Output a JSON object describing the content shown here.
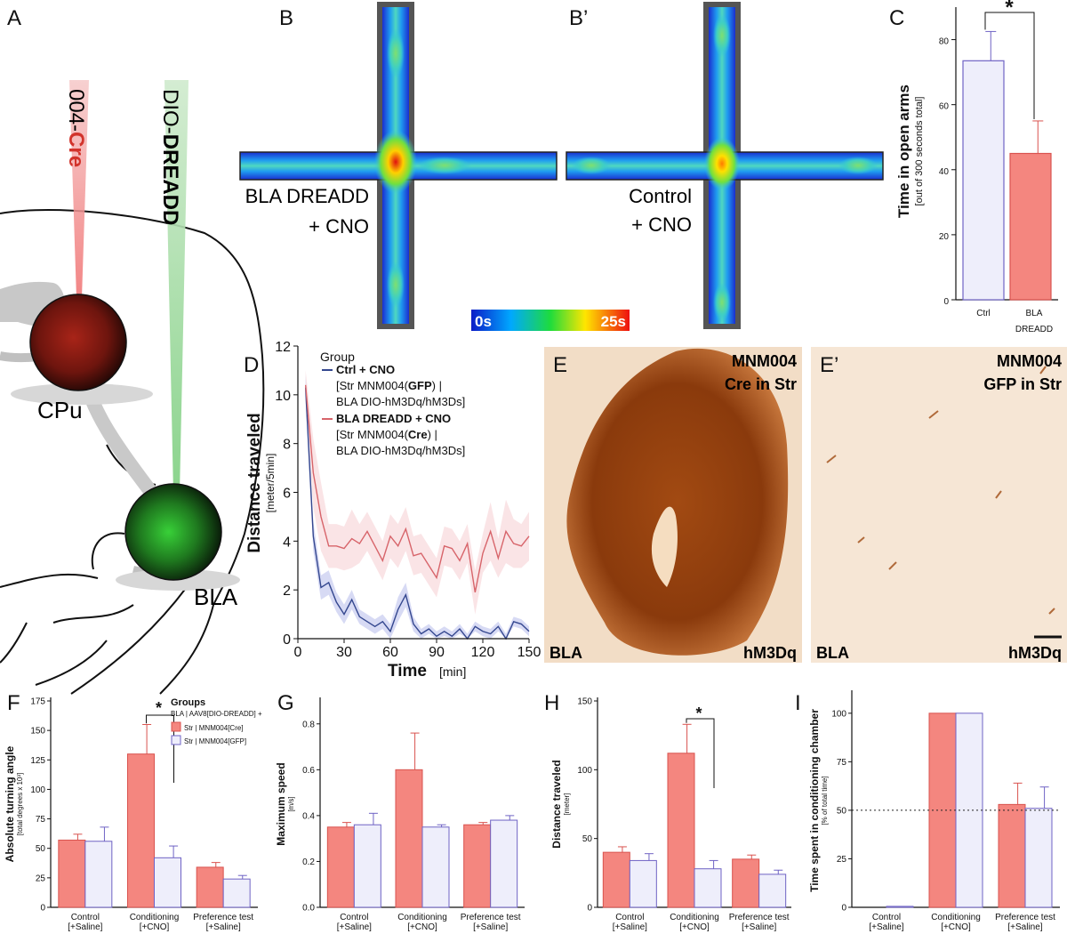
{
  "colors": {
    "cre_bar": "#f4867f",
    "gfp_bar": "#eeeefb",
    "cre_border": "#d9534f",
    "gfp_border": "#6f63c4",
    "ctrl_line": "#34478f",
    "bla_line": "#d7646a",
    "ctrl_band": "#c9cef0",
    "bla_band": "#f8dbdd",
    "stain_dark": "#8a3a0c",
    "stain_bg": "#f6e9dc"
  },
  "panelA": {
    "letter": "A",
    "injection1_prefix": "004-",
    "injection1_bold": "Cre",
    "injection2_prefix": "DIO-",
    "injection2_bold": "DREADD",
    "label_cpu": "CPu",
    "label_bla": "BLA"
  },
  "panelB": {
    "letter": "B",
    "caption_line1": "BLA DREADD",
    "caption_line2": "+ CNO"
  },
  "panelB2": {
    "letter": "B’",
    "caption_line1": "Control",
    "caption_line2": "+ CNO"
  },
  "colorbar": {
    "min_label": "0s",
    "max_label": "25s"
  },
  "panelE": {
    "letter": "E",
    "title_line1": "MNM004",
    "title_line2": "Cre in Str",
    "region": "BLA",
    "marker": "hM3Dq"
  },
  "panelE2": {
    "letter": "E’",
    "title_line1": "MNM004",
    "title_line2": "GFP in Str",
    "region": "BLA",
    "marker": "hM3Dq"
  },
  "chart_data": [
    {
      "panel": "C",
      "type": "bar",
      "ylabel": "Time in open arms",
      "ysublabel": "[out of 300 seconds total]",
      "ylim": [
        0,
        90
      ],
      "yticks": [
        0,
        20,
        40,
        60,
        80
      ],
      "categories": [
        "Ctrl",
        "BLA\nDREADD"
      ],
      "values": [
        73.5,
        45
      ],
      "errors": [
        9,
        10
      ],
      "significance": "*"
    },
    {
      "panel": "D",
      "type": "line",
      "ylabel": "Distance traveled",
      "ysublabel": "[meter/5min]",
      "xlabel": "Time",
      "xunit": "[min]",
      "xlim": [
        0,
        150
      ],
      "ylim": [
        0,
        12
      ],
      "xticks": [
        0,
        30,
        60,
        90,
        120,
        150
      ],
      "yticks": [
        0,
        2,
        4,
        6,
        8,
        10,
        12
      ],
      "legend_title": "Group",
      "x": [
        5,
        10,
        15,
        20,
        25,
        30,
        35,
        40,
        45,
        50,
        55,
        60,
        65,
        70,
        75,
        80,
        85,
        90,
        95,
        100,
        105,
        110,
        115,
        120,
        125,
        130,
        135,
        140,
        145,
        150
      ],
      "series": [
        {
          "name": "Ctrl + CNO",
          "sub1": "[Str MNM004(",
          "sub1b": "GFP",
          "sub1c": ")  |",
          "sub2": "BLA DIO-hM3Dq/hM3Ds]",
          "values": [
            10.3,
            4.2,
            2.1,
            2.3,
            1.5,
            1.0,
            1.6,
            0.9,
            0.7,
            0.5,
            0.7,
            0.3,
            1.2,
            1.8,
            0.6,
            0.2,
            0.4,
            0.1,
            0.3,
            0.1,
            0.4,
            0.0,
            0.5,
            0.3,
            0.2,
            0.5,
            0.0,
            0.7,
            0.6,
            0.3
          ],
          "band": [
            0.5,
            0.6,
            0.5,
            0.5,
            0.4,
            0.4,
            0.4,
            0.3,
            0.3,
            0.3,
            0.3,
            0.3,
            0.5,
            0.5,
            0.3,
            0.2,
            0.2,
            0.2,
            0.2,
            0.2,
            0.2,
            0.2,
            0.2,
            0.2,
            0.2,
            0.2,
            0.2,
            0.2,
            0.2,
            0.2
          ]
        },
        {
          "name": "BLA DREADD + CNO",
          "sub1": "[Str MNM004(",
          "sub1b": "Cre",
          "sub1c": ")  |",
          "sub2": "BLA DIO-hM3Dq/hM3Ds]",
          "values": [
            10.4,
            6.8,
            5.0,
            3.8,
            3.8,
            3.7,
            4.1,
            3.9,
            4.4,
            3.8,
            3.2,
            4.2,
            3.8,
            4.5,
            3.4,
            3.5,
            3.0,
            2.5,
            3.8,
            3.7,
            3.2,
            3.9,
            1.9,
            3.5,
            4.4,
            3.3,
            4.4,
            3.9,
            3.8,
            4.2
          ],
          "band": [
            0.6,
            1.4,
            1.4,
            0.9,
            0.9,
            0.9,
            1.2,
            0.8,
            0.8,
            0.8,
            0.8,
            0.9,
            0.9,
            0.9,
            0.8,
            0.8,
            0.8,
            0.8,
            0.8,
            0.8,
            0.8,
            0.8,
            0.9,
            0.8,
            1.2,
            0.8,
            1.3,
            1.0,
            0.9,
            1.0
          ]
        }
      ]
    },
    {
      "panel": "F",
      "type": "bar",
      "ylabel": "Absolute turning angle",
      "ysublabel": "[total degrees x 10³]",
      "ylim": [
        0,
        175
      ],
      "yticks": [
        0,
        25,
        50,
        75,
        100,
        125,
        150,
        175
      ],
      "categories": [
        "Control",
        "Conditioning",
        "Preference test"
      ],
      "sublabels": [
        "[+Saline]",
        "[+CNO]",
        "[+Saline]"
      ],
      "series": [
        {
          "name": "Str | MNM004[Cre]",
          "values": [
            57,
            130,
            34
          ],
          "errors": [
            5,
            25,
            4
          ]
        },
        {
          "name": "Str | MNM004[GFP]",
          "values": [
            56,
            42,
            24
          ],
          "errors": [
            12,
            10,
            3
          ]
        }
      ],
      "legend_title": "Groups",
      "legend_subtitle": "BLA | AAV8[DIO-DREADD] +",
      "significance": "*"
    },
    {
      "panel": "G",
      "type": "bar",
      "ylabel": "Maximum speed",
      "ysublabel": "[m/s]",
      "ylim": [
        0,
        0.9
      ],
      "yticks": [
        0,
        0.2,
        0.4,
        0.6,
        0.8
      ],
      "categories": [
        "Control",
        "Conditioning",
        "Preference test"
      ],
      "sublabels": [
        "[+Saline]",
        "[+CNO]",
        "[+Saline]"
      ],
      "series": [
        {
          "name": "Cre",
          "values": [
            0.35,
            0.6,
            0.36
          ],
          "errors": [
            0.02,
            0.16,
            0.01
          ]
        },
        {
          "name": "GFP",
          "values": [
            0.36,
            0.35,
            0.38
          ],
          "errors": [
            0.05,
            0.01,
            0.02
          ]
        }
      ]
    },
    {
      "panel": "H",
      "type": "bar",
      "ylabel": "Distance traveled",
      "ysublabel": "[meter]",
      "ylim": [
        0,
        150
      ],
      "yticks": [
        0,
        50,
        100,
        150
      ],
      "categories": [
        "Control",
        "Conditioning",
        "Preference test"
      ],
      "sublabels": [
        "[+Saline]",
        "[+CNO]",
        "[+Saline]"
      ],
      "series": [
        {
          "name": "Cre",
          "values": [
            40,
            112,
            35
          ],
          "errors": [
            4,
            21,
            3
          ]
        },
        {
          "name": "GFP",
          "values": [
            34,
            28,
            24
          ],
          "errors": [
            5,
            6,
            3
          ]
        }
      ],
      "significance": "*"
    },
    {
      "panel": "I",
      "type": "bar",
      "ylabel": "Time spent in conditioning chamber",
      "ysublabel": "[% of total time]",
      "ylim": [
        0,
        110
      ],
      "yticks": [
        0,
        25,
        50,
        75,
        100
      ],
      "categories": [
        "Control",
        "Conditioning",
        "Preference test"
      ],
      "sublabels": [
        "[+Saline]",
        "[+CNO]",
        "[+Saline]"
      ],
      "series": [
        {
          "name": "Cre",
          "values": [
            0,
            100,
            53
          ],
          "errors": [
            0,
            0,
            11
          ]
        },
        {
          "name": "GFP",
          "values": [
            0.5,
            100,
            51
          ],
          "errors": [
            0,
            0,
            11
          ]
        }
      ],
      "reference_line": 50
    }
  ]
}
